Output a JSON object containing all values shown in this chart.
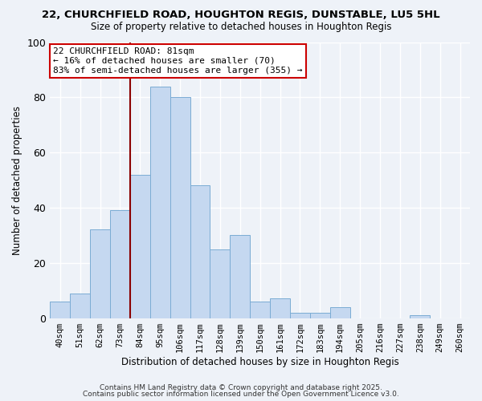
{
  "title1": "22, CHURCHFIELD ROAD, HOUGHTON REGIS, DUNSTABLE, LU5 5HL",
  "title2": "Size of property relative to detached houses in Houghton Regis",
  "xlabel": "Distribution of detached houses by size in Houghton Regis",
  "ylabel": "Number of detached properties",
  "bin_labels": [
    "40sqm",
    "51sqm",
    "62sqm",
    "73sqm",
    "84sqm",
    "95sqm",
    "106sqm",
    "117sqm",
    "128sqm",
    "139sqm",
    "150sqm",
    "161sqm",
    "172sqm",
    "183sqm",
    "194sqm",
    "205sqm",
    "216sqm",
    "227sqm",
    "238sqm",
    "249sqm",
    "260sqm"
  ],
  "bar_heights": [
    6,
    9,
    32,
    39,
    52,
    84,
    80,
    48,
    25,
    30,
    6,
    7,
    2,
    2,
    4,
    0,
    0,
    0,
    1,
    0,
    0
  ],
  "bar_color": "#c5d8f0",
  "bar_edge_color": "#7bacd4",
  "ylim": [
    0,
    100
  ],
  "yticks": [
    0,
    20,
    40,
    60,
    80,
    100
  ],
  "property_label": "22 CHURCHFIELD ROAD: 81sqm",
  "annotation_line1": "← 16% of detached houses are smaller (70)",
  "annotation_line2": "83% of semi-detached houses are larger (355) →",
  "vline_bin_index": 4,
  "footer1": "Contains HM Land Registry data © Crown copyright and database right 2025.",
  "footer2": "Contains public sector information licensed under the Open Government Licence v3.0.",
  "background_color": "#eef2f8",
  "grid_color": "#ffffff",
  "bar_width": 1.0,
  "title1_fontsize": 9.5,
  "title2_fontsize": 8.5,
  "annotation_fontsize": 8.0,
  "tick_fontsize": 7.5,
  "axis_label_fontsize": 8.5,
  "footer_fontsize": 6.5
}
